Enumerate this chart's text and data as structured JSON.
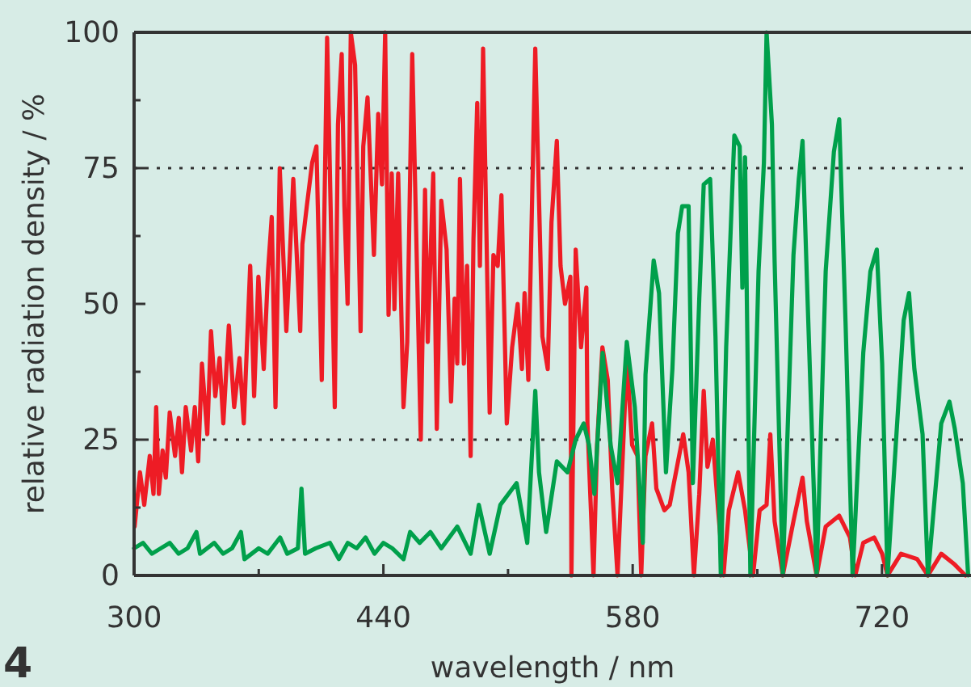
{
  "chart_data": {
    "type": "line",
    "xlabel": "wavelength / nm",
    "ylabel": "relative radiation density / %",
    "annotations": [
      "4"
    ],
    "xlim": [
      300,
      770
    ],
    "ylim": [
      0,
      100
    ],
    "xticks": [
      300,
      {
        "value": 370,
        "label": null
      },
      440,
      {
        "value": 510,
        "label": null
      },
      580,
      {
        "value": 650,
        "label": null
      },
      720
    ],
    "yticks": [
      0,
      {
        "value": 12.5,
        "label": null
      },
      25,
      {
        "value": 37.5,
        "label": null
      },
      50,
      {
        "value": 62.5,
        "label": null
      },
      75,
      {
        "value": 87.5,
        "label": null
      },
      100
    ],
    "grid": false,
    "marker": "none",
    "line_style": "solid",
    "ref_lines": [
      {
        "axis": "y",
        "value": 25,
        "color": "#333333",
        "line_style": "dotted"
      },
      {
        "axis": "y",
        "value": 75,
        "color": "#333333",
        "line_style": "dotted"
      }
    ],
    "series": [
      {
        "color": "#ee1c25",
        "x": [
          300.3,
          303.3,
          305.7,
          308.8,
          310.9,
          312.4,
          313.9,
          316,
          317.8,
          320,
          323,
          325.1,
          326.9,
          329,
          332,
          334.1,
          336,
          338.1,
          341.1,
          343.2,
          345.6,
          348,
          350.1,
          353.2,
          356.2,
          359.2,
          361.6,
          365.2,
          367.4,
          369.8,
          372.8,
          375.2,
          377.3,
          379.4,
          381.8,
          385.5,
          389.4,
          393.3,
          394.5,
          397,
          400,
          402.4,
          405.4,
          408.4,
          412.7,
          414.5,
          416.6,
          418.1,
          419.9,
          421.7,
          424.1,
          427.2,
          428.7,
          431.1,
          434.7,
          437.1,
          439.2,
          441,
          442.9,
          444.7,
          446.2,
          448.3,
          451.3,
          453.4,
          456.2,
          461,
          463.4,
          464.9,
          468,
          470,
          472.5,
          475.5,
          478,
          480,
          481.5,
          483,
          485.2,
          487,
          489,
          490.6,
          492.7,
          494.2,
          496,
          499.7,
          501.8,
          504.2,
          506.3,
          509.3,
          512.3,
          515.4,
          517.8,
          519.3,
          521.4,
          525.3,
          529.3,
          532.3,
          534.4,
          537.4,
          539.5,
          542,
          545,
          545.6,
          548,
          551,
          554,
          554.6,
          558,
          560,
          563,
          566,
          568.5,
          571.5,
          575.2,
          576.7,
          579.7,
          582.7,
          584.8,
          587.2,
          590.9,
          593.3,
          597.8,
          600.8,
          608.4,
          611.4,
          614.4,
          617.4,
          619.9,
          622,
          625,
          628,
          631,
          634,
          639.2,
          643.1,
          647.6,
          651.3,
          655.2,
          657.3,
          659.7,
          664.3,
          670.3,
          675.4,
          677.8,
          683.3,
          688.4,
          696,
          702,
          705,
          709.5,
          715.6,
          720.1,
          723.1,
          730.7,
          739.8,
          745.8,
          753.3,
          760.9,
          766.9
        ],
        "values": [
          9,
          19,
          13,
          22,
          15,
          31,
          15,
          23,
          18,
          30,
          22,
          29,
          19,
          31,
          23,
          31,
          21,
          39,
          26,
          45,
          33,
          40,
          28,
          46,
          31,
          40,
          28,
          57,
          33,
          55,
          38,
          56,
          66,
          31,
          75,
          45,
          73,
          45,
          61,
          68,
          76,
          79,
          36,
          99,
          31,
          83,
          96,
          68,
          50,
          100,
          94,
          45,
          79,
          88,
          59,
          85,
          72,
          100,
          48,
          74,
          49,
          74,
          31,
          43,
          96,
          25,
          71,
          43,
          74,
          27,
          69,
          60,
          32,
          51,
          39,
          73,
          39,
          57,
          22,
          62,
          87,
          57,
          97,
          30,
          59,
          57,
          70,
          28,
          42,
          50,
          38,
          52,
          36,
          97,
          44,
          38,
          65,
          80,
          57,
          50,
          55,
          0,
          60,
          42,
          53,
          28,
          0,
          24,
          42,
          36,
          16,
          0,
          28,
          40,
          24,
          22,
          0,
          22,
          28,
          16,
          12,
          13,
          26,
          19,
          0,
          15,
          34,
          20,
          25,
          12,
          0,
          12,
          19,
          12,
          0,
          12,
          13,
          26,
          10,
          0,
          10,
          18,
          10,
          0,
          9,
          11,
          7,
          0,
          6,
          7,
          4,
          0,
          4,
          3,
          0,
          4,
          2,
          0
        ]
      },
      {
        "color": "#00a04b",
        "x": [
          300,
          305,
          310,
          315,
          320,
          325,
          330,
          335,
          337,
          345,
          350,
          355,
          360,
          362,
          370,
          375,
          382,
          386,
          392,
          394,
          396,
          402,
          410,
          415,
          420,
          425,
          430,
          435,
          440,
          445,
          451.3,
          455,
          460.4,
          466.4,
          472.5,
          481.5,
          489,
          493.6,
          499.7,
          505.7,
          514.8,
          520.8,
          525.3,
          527.4,
          531.4,
          537.4,
          543.4,
          548,
          552.5,
          555.5,
          558.5,
          563.1,
          567.6,
          571.5,
          576.7,
          581.2,
          585.7,
          587.2,
          591.8,
          594.8,
          598.7,
          602.3,
          605.4,
          607.8,
          611.4,
          613.8,
          617.4,
          619.9,
          623.5,
          626.5,
          629.5,
          632.5,
          637.1,
          640.1,
          641.6,
          643.1,
          646.1,
          650.7,
          653.7,
          655.2,
          658.2,
          659.7,
          664.3,
          670.3,
          673.3,
          675.4,
          677.8,
          683.3,
          688.4,
          693,
          696,
          699.6,
          703.5,
          709.5,
          713.5,
          717.1,
          720.1,
          723.1,
          732.2,
          735.2,
          738.2,
          742.8,
          745.8,
          753.3,
          757.9,
          760.9,
          765.4,
          768.4
        ],
        "values": [
          5,
          6,
          4,
          5,
          6,
          4,
          5,
          8,
          4,
          6,
          4,
          5,
          8,
          3,
          5,
          4,
          7,
          4,
          5,
          16,
          4,
          5,
          6,
          3,
          6,
          5,
          7,
          4,
          6,
          5,
          3,
          8,
          6,
          8,
          5,
          9,
          4,
          13,
          4,
          13,
          17,
          6,
          34,
          19,
          8,
          21,
          19,
          25,
          28,
          24,
          15,
          41,
          24,
          17,
          43,
          31,
          6,
          37,
          58,
          52,
          19,
          38,
          63,
          68,
          68,
          17,
          51,
          72,
          73,
          44,
          0,
          42,
          81,
          79,
          53,
          77,
          0,
          56,
          76,
          100,
          83,
          58,
          0,
          59,
          73,
          80,
          55,
          0,
          56,
          78,
          84,
          46,
          0,
          41,
          56,
          60,
          39,
          0,
          47,
          52,
          38,
          26,
          0,
          28,
          32,
          27,
          17,
          0
        ]
      }
    ]
  }
}
